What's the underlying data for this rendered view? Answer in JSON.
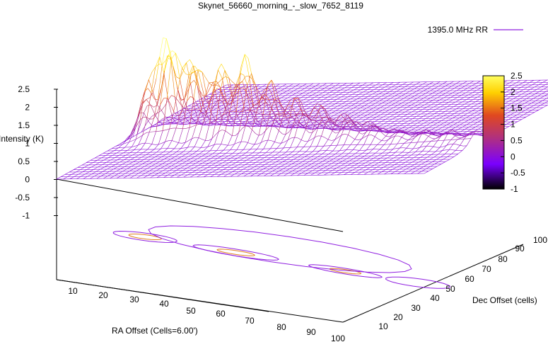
{
  "chart_data": {
    "type": "surface3d",
    "title": "Skynet_56660_morning_-_slow_7652_8119",
    "xlabel": "RA Offset (Cells=6.00')",
    "ylabel": "Dec Offset (cells)",
    "zlabel": "Intensity (K)",
    "x_ticks": [
      "10",
      "20",
      "30",
      "40",
      "50",
      "60",
      "70",
      "80",
      "90",
      "100"
    ],
    "y_ticks": [
      "10",
      "20",
      "30",
      "40",
      "50",
      "60",
      "70",
      "80",
      "90",
      "100"
    ],
    "z_ticks": [
      "2.5",
      "2",
      "1.5",
      "1",
      "0.5",
      "0",
      "-0.5",
      "-1"
    ],
    "xlim": [
      0,
      100
    ],
    "ylim": [
      10,
      100
    ],
    "zlim": [
      -1,
      2.5
    ],
    "colorbar": {
      "range": [
        -1,
        2.5
      ],
      "ticks": [
        "2.5",
        "2",
        "1.5",
        "1",
        "0.5",
        "0",
        "-0.5",
        "-1"
      ],
      "colors": [
        "#000000",
        "#7a00ff",
        "#b03080",
        "#e04820",
        "#ffd000",
        "#ffff60"
      ]
    },
    "legend": {
      "label": "1395.0 MHz RR",
      "color": "#9020e0",
      "position": "top-right"
    },
    "series": [
      {
        "name": "1395.0 MHz RR",
        "color": "#9020e0",
        "ridge": {
          "points": [
            {
              "x": 8,
              "z": 2.4
            },
            {
              "x": 12,
              "z": 2.3
            },
            {
              "x": 18,
              "z": 1.8
            },
            {
              "x": 25,
              "z": 1.6
            },
            {
              "x": 32,
              "z": 1.9
            },
            {
              "x": 38,
              "z": 1.4
            },
            {
              "x": 45,
              "z": 1.0
            },
            {
              "x": 52,
              "z": 0.9
            },
            {
              "x": 58,
              "z": 0.7
            },
            {
              "x": 64,
              "z": 0.6
            },
            {
              "x": 70,
              "z": 0.45
            },
            {
              "x": 76,
              "z": 0.3
            }
          ]
        }
      }
    ]
  }
}
